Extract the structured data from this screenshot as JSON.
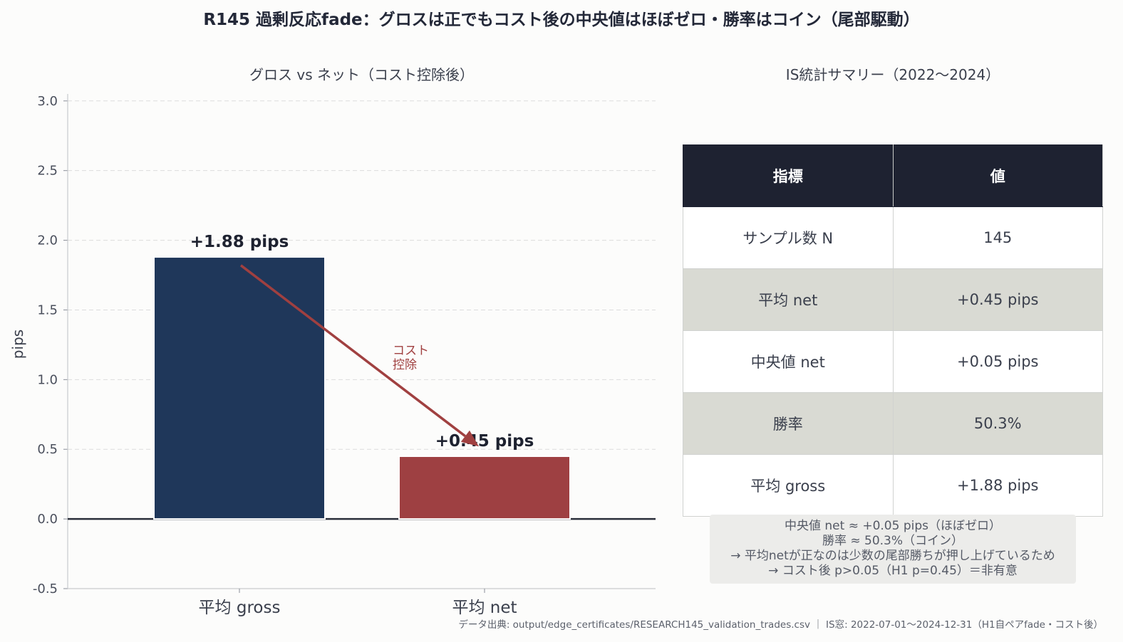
{
  "title": "R145 過剰反応fade：グロスは正でもコスト後の中央値はほぼゼロ・勝率はコイン（尾部駆動）",
  "chart_data": {
    "type": "bar",
    "title": "グロス vs ネット（コスト控除後）",
    "ylabel": "pips",
    "categories": [
      "平均 gross",
      "平均 net"
    ],
    "values": [
      1.88,
      0.45
    ],
    "data_labels": [
      "+1.88 pips",
      "+0.45 pips"
    ],
    "colors": [
      "#1f375a",
      "#9e4042"
    ],
    "ylim": [
      -0.5,
      3.05
    ],
    "yticks": [
      -0.5,
      0.0,
      0.5,
      1.0,
      1.5,
      2.0,
      2.5,
      3.0
    ],
    "ytick_labels": [
      "-0.5",
      "0.0",
      "0.5",
      "1.0",
      "1.5",
      "2.0",
      "2.5",
      "3.0"
    ],
    "grid": "y-dashed",
    "annotation": {
      "lines": [
        "コスト",
        "控除"
      ],
      "arrow_from": {
        "category": 0,
        "y": 1.82
      },
      "arrow_to": {
        "category": 1,
        "y": 0.52
      },
      "color": "#a04040"
    }
  },
  "table": {
    "title": "IS統計サマリー（2022〜2024）",
    "headers": [
      "指標",
      "値"
    ],
    "rows": [
      [
        "サンプル数 N",
        "145"
      ],
      [
        "平均 net",
        "+0.45 pips"
      ],
      [
        "中央値 net",
        "+0.05 pips"
      ],
      [
        "勝率",
        "50.3%"
      ],
      [
        "平均 gross",
        "+1.88 pips"
      ]
    ]
  },
  "note": {
    "lines": [
      "中央値 net ≈ +0.05 pips（ほぼゼロ）",
      "勝率 ≈ 50.3%（コイン）",
      "→ 平均netが正なのは少数の尾部勝ちが押し上げているため",
      "→ コスト後 p>0.05（H1 p=0.45）＝非有意"
    ]
  },
  "source": "データ出典: output/edge_certificates/RESEARCH145_validation_trades.csv ｜ IS窓: 2022-07-01〜2024-12-31（H1自ペアfade・コスト後）"
}
